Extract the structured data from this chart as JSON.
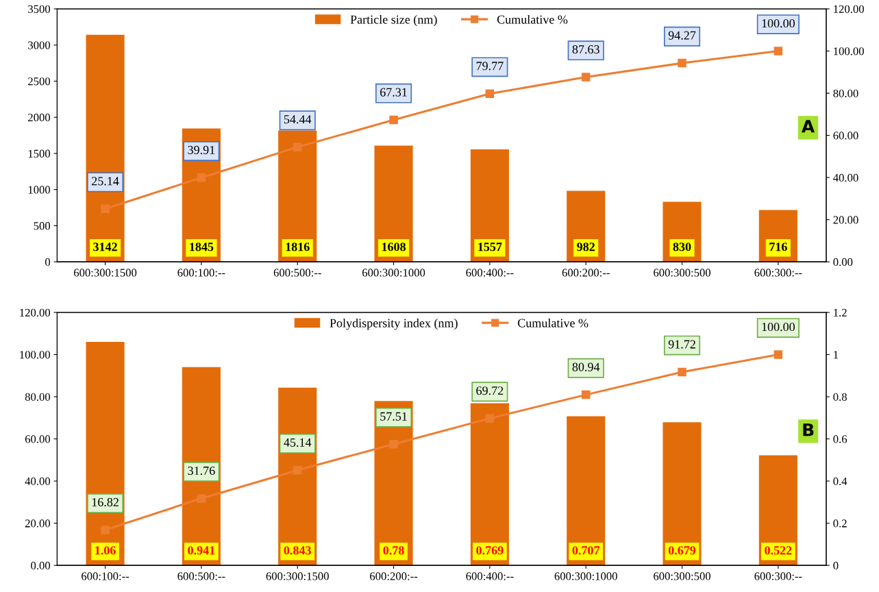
{
  "chart_data": [
    {
      "type": "bar",
      "categories": [
        "600:300:1500",
        "600:100:--",
        "600:500:--",
        "600:300:1000",
        "600:400:--",
        "600:200:--",
        "600:300:500",
        "600:300:--"
      ],
      "series": [
        {
          "name": "Particle size (nm)",
          "axis": "y",
          "color": "#e36c0a",
          "values": [
            3142,
            1845,
            1816,
            1608,
            1557,
            982,
            830,
            716
          ]
        },
        {
          "name": "Cumulative %",
          "type": "line",
          "axis": "y2",
          "color": "#ed7d31",
          "values": [
            25.14,
            39.91,
            54.44,
            67.31,
            79.77,
            87.63,
            94.27,
            100.0
          ],
          "value_labels": [
            "25.14",
            "39.91",
            "54.44",
            "67.31",
            "79.77",
            "87.63",
            "94.27",
            "100.00"
          ]
        }
      ],
      "data_labels": true,
      "marker": "square",
      "legend": "top",
      "grid": false,
      "ylim": [
        0,
        3500
      ],
      "yticks": [
        0,
        500,
        1000,
        1500,
        2000,
        2500,
        3000,
        3500
      ],
      "y2lim": [
        0,
        120
      ],
      "y2ticks": [
        {
          "value": 0,
          "label": "0.00"
        },
        {
          "value": 20,
          "label": "20.00"
        },
        {
          "value": 40,
          "label": "40.00"
        },
        {
          "value": 60,
          "label": "60.00"
        },
        {
          "value": 80,
          "label": "80.00"
        },
        {
          "value": 100,
          "label": "100.00"
        },
        {
          "value": 120,
          "label": "120.00"
        }
      ],
      "annotations": [
        "A"
      ]
    },
    {
      "type": "bar",
      "categories": [
        "600:100:--",
        "600:500:--",
        "600:300:1500",
        "600:200:--",
        "600:400:--",
        "600:300:1000",
        "600:300:500",
        "600:300:--"
      ],
      "series": [
        {
          "name": "Polydispersity index (nm)",
          "axis": "y2",
          "color": "#e36c0a",
          "values": [
            1.06,
            0.941,
            0.843,
            0.78,
            0.769,
            0.707,
            0.679,
            0.522
          ]
        },
        {
          "name": "Cumulative %",
          "type": "line",
          "axis": "y",
          "color": "#ed7d31",
          "values": [
            16.82,
            31.76,
            45.14,
            57.51,
            69.72,
            80.94,
            91.72,
            100.0
          ],
          "value_labels": [
            "16.82",
            "31.76",
            "45.14",
            "57.51",
            "69.72",
            "80.94",
            "91.72",
            "100.00"
          ]
        }
      ],
      "data_labels": true,
      "marker": "square",
      "legend": "top",
      "grid": false,
      "ylim": [
        0,
        120
      ],
      "yticks": [
        {
          "value": 0,
          "label": "0.00"
        },
        {
          "value": 20,
          "label": "20.00"
        },
        {
          "value": 40,
          "label": "40.00"
        },
        {
          "value": 60,
          "label": "60.00"
        },
        {
          "value": 80,
          "label": "80.00"
        },
        {
          "value": 100,
          "label": "100.00"
        },
        {
          "value": 120,
          "label": "120.00"
        }
      ],
      "y2lim": [
        0,
        1.2
      ],
      "y2ticks": [
        0,
        0.2,
        0.4,
        0.6,
        0.8,
        1,
        1.2
      ],
      "annotations": [
        "B"
      ]
    }
  ]
}
